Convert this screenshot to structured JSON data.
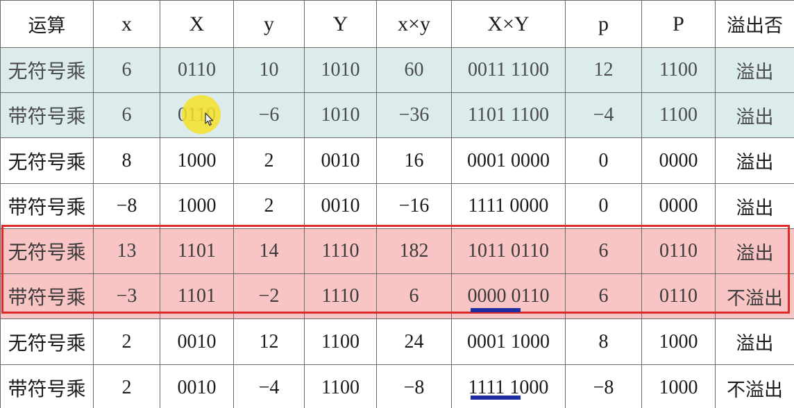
{
  "table": {
    "headers": [
      "运算",
      "x",
      "X",
      "y",
      "Y",
      "x×y",
      "X×Y",
      "p",
      "P",
      "溢出否"
    ],
    "rows": [
      [
        "无符号乘",
        "6",
        "0110",
        "10",
        "1010",
        "60",
        "0011 1100",
        "12",
        "1100",
        "溢出"
      ],
      [
        "带符号乘",
        "6",
        "0110",
        "−6",
        "1010",
        "−36",
        "1101 1100",
        "−4",
        "1100",
        "溢出"
      ],
      [
        "无符号乘",
        "8",
        "1000",
        "2",
        "0010",
        "16",
        "0001 0000",
        "0",
        "0000",
        "溢出"
      ],
      [
        "带符号乘",
        "−8",
        "1000",
        "2",
        "0010",
        "−16",
        "1111 0000",
        "0",
        "0000",
        "溢出"
      ],
      [
        "无符号乘",
        "13",
        "1101",
        "14",
        "1110",
        "182",
        "1011 0110",
        "6",
        "0110",
        "溢出"
      ],
      [
        "带符号乘",
        "−3",
        "1101",
        "−2",
        "1110",
        "6",
        "0000 0110",
        "6",
        "0110",
        "不溢出"
      ],
      [
        "无符号乘",
        "2",
        "0010",
        "12",
        "1100",
        "24",
        "0001 1000",
        "8",
        "1000",
        "溢出"
      ],
      [
        "带符号乘",
        "2",
        "0010",
        "−4",
        "1100",
        "−8",
        "1111 1000",
        "−8",
        "1000",
        "不溢出"
      ]
    ]
  },
  "colors": {
    "teal_highlight": "#dcecec",
    "pink_highlight": "#f8c4c4",
    "red_box": "#e02a2a",
    "underline": "#1e2ea0",
    "cursor_halo": "#f5e128"
  },
  "icons": {
    "cursor": "mouse-pointer-icon"
  }
}
